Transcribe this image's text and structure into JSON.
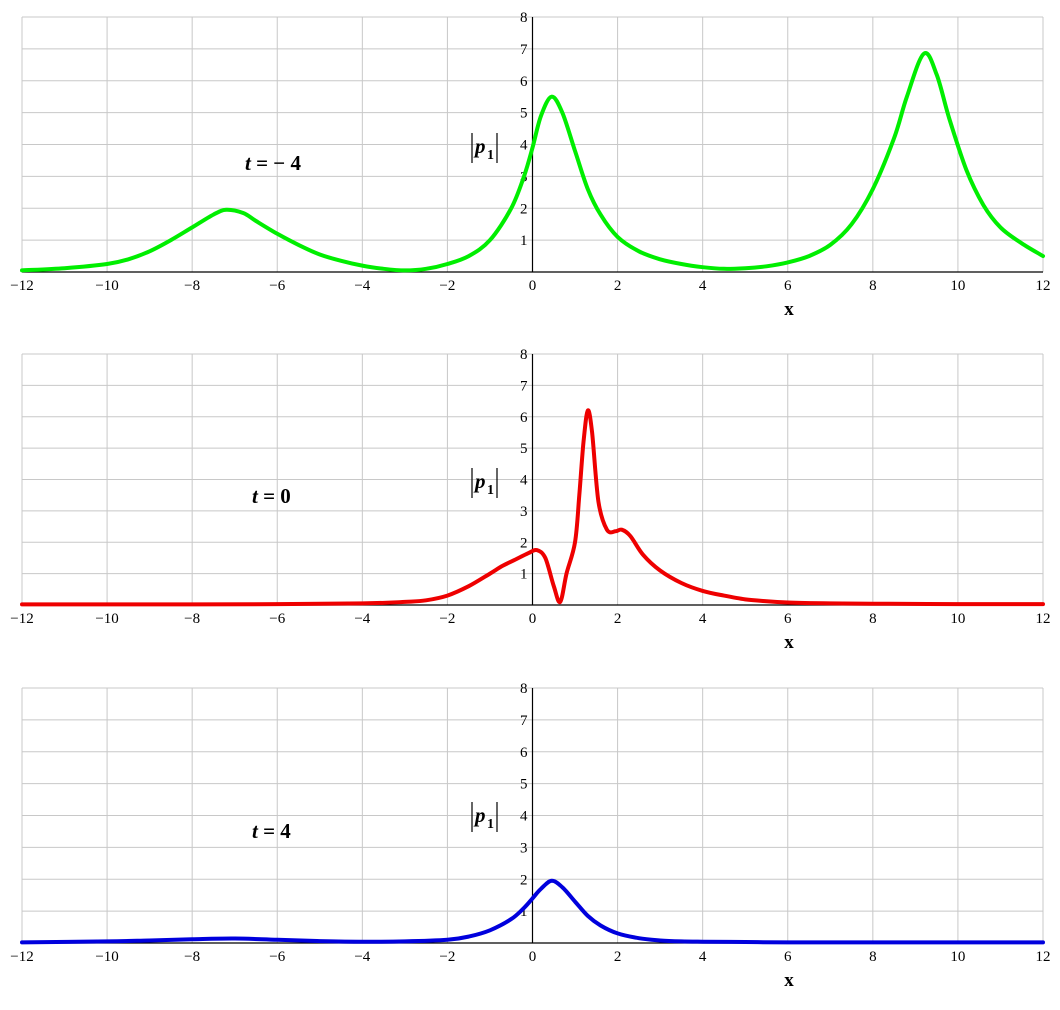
{
  "chart_data": [
    {
      "type": "line",
      "annotation": {
        "var": "t",
        "eq": " = ",
        "val": "− 4"
      },
      "ylabel": {
        "base": "p",
        "sub": "1"
      },
      "xlabel": "x",
      "xlim": [
        -12,
        12
      ],
      "ylim": [
        0,
        8
      ],
      "grid": true,
      "x_ticks": [
        -12,
        -10,
        -8,
        -6,
        -4,
        -2,
        0,
        2,
        4,
        6,
        8,
        10,
        12
      ],
      "y_ticks": [
        1,
        2,
        3,
        4,
        5,
        6,
        7,
        8
      ],
      "series": [
        {
          "color": "#00ee00",
          "x": [
            -12,
            -11,
            -10,
            -9.5,
            -9,
            -8.5,
            -8,
            -7.5,
            -7.2,
            -6.8,
            -6.5,
            -6,
            -5.5,
            -5,
            -4.5,
            -4,
            -3.5,
            -3,
            -2.5,
            -2,
            -1.5,
            -1,
            -0.5,
            -0.2,
            0,
            0.2,
            0.45,
            0.7,
            1,
            1.3,
            1.6,
            2,
            2.5,
            3,
            3.5,
            4,
            4.5,
            5,
            5.5,
            6,
            6.5,
            7,
            7.5,
            8,
            8.5,
            8.8,
            9.2,
            9.5,
            9.8,
            10.2,
            10.6,
            11,
            11.5,
            12
          ],
          "y": [
            0.05,
            0.12,
            0.25,
            0.4,
            0.65,
            1.0,
            1.4,
            1.8,
            1.95,
            1.85,
            1.6,
            1.2,
            0.85,
            0.55,
            0.35,
            0.2,
            0.1,
            0.05,
            0.1,
            0.25,
            0.5,
            1.0,
            2.0,
            3.0,
            3.9,
            4.9,
            5.5,
            5.0,
            3.8,
            2.6,
            1.8,
            1.1,
            0.65,
            0.4,
            0.25,
            0.15,
            0.1,
            0.12,
            0.18,
            0.3,
            0.5,
            0.85,
            1.5,
            2.6,
            4.2,
            5.5,
            6.85,
            6.2,
            4.8,
            3.2,
            2.1,
            1.4,
            0.9,
            0.5
          ]
        }
      ]
    },
    {
      "type": "line",
      "annotation": {
        "var": "t",
        "eq": " = ",
        "val": "0"
      },
      "ylabel": {
        "base": "p",
        "sub": "1"
      },
      "xlabel": "x",
      "xlim": [
        -12,
        12
      ],
      "ylim": [
        0,
        8
      ],
      "grid": true,
      "x_ticks": [
        -12,
        -10,
        -8,
        -6,
        -4,
        -2,
        0,
        2,
        4,
        6,
        8,
        10,
        12
      ],
      "y_ticks": [
        1,
        2,
        3,
        4,
        5,
        6,
        7,
        8
      ],
      "series": [
        {
          "color": "#ee0000",
          "x": [
            -12,
            -8,
            -6,
            -4,
            -3,
            -2.5,
            -2,
            -1.5,
            -1,
            -0.7,
            -0.4,
            -0.1,
            0.1,
            0.3,
            0.5,
            0.65,
            0.8,
            1.0,
            1.1,
            1.2,
            1.3,
            1.4,
            1.55,
            1.75,
            1.95,
            2.1,
            2.3,
            2.6,
            3,
            3.5,
            4,
            4.5,
            5,
            5.5,
            6,
            7,
            8,
            10,
            12
          ],
          "y": [
            0.02,
            0.02,
            0.03,
            0.05,
            0.1,
            0.15,
            0.3,
            0.6,
            1.0,
            1.25,
            1.45,
            1.65,
            1.75,
            1.5,
            0.6,
            0.1,
            1.0,
            2.0,
            3.5,
            5.2,
            6.2,
            5.5,
            3.3,
            2.4,
            2.35,
            2.4,
            2.2,
            1.6,
            1.1,
            0.7,
            0.45,
            0.3,
            0.18,
            0.12,
            0.08,
            0.05,
            0.04,
            0.03,
            0.03
          ]
        }
      ]
    },
    {
      "type": "line",
      "annotation": {
        "var": "t",
        "eq": " = ",
        "val": "4"
      },
      "ylabel": {
        "base": "p",
        "sub": "1"
      },
      "xlabel": "x",
      "xlim": [
        -12,
        12
      ],
      "ylim": [
        0,
        8
      ],
      "grid": true,
      "x_ticks": [
        -12,
        -10,
        -8,
        -6,
        -4,
        -2,
        0,
        2,
        4,
        6,
        8,
        10,
        12
      ],
      "y_ticks": [
        1,
        2,
        3,
        4,
        5,
        6,
        7,
        8
      ],
      "series": [
        {
          "color": "#0000dd",
          "x": [
            -12,
            -10,
            -9,
            -8,
            -7,
            -6,
            -5,
            -4,
            -3,
            -2,
            -1.5,
            -1,
            -0.5,
            -0.2,
            0,
            0.2,
            0.45,
            0.7,
            1.0,
            1.3,
            1.6,
            2,
            2.5,
            3,
            3.5,
            4,
            5,
            6,
            8,
            10,
            12
          ],
          "y": [
            0.02,
            0.05,
            0.08,
            0.12,
            0.14,
            0.1,
            0.06,
            0.04,
            0.05,
            0.1,
            0.2,
            0.4,
            0.75,
            1.1,
            1.4,
            1.7,
            1.95,
            1.75,
            1.3,
            0.85,
            0.55,
            0.3,
            0.15,
            0.08,
            0.05,
            0.04,
            0.03,
            0.02,
            0.02,
            0.02,
            0.02
          ]
        }
      ]
    }
  ]
}
